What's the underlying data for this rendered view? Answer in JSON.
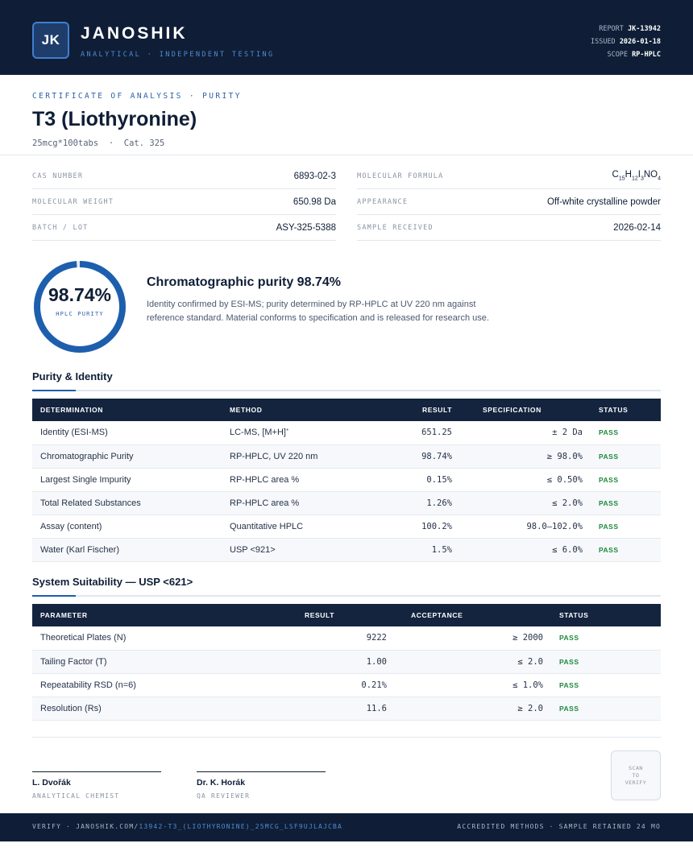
{
  "header": {
    "logo": "JK",
    "brand": "JANOSHIK",
    "brand_sub": "ANALYTICAL · INDEPENDENT TESTING",
    "report_label": "REPORT",
    "report_value": "JK-13942",
    "issued_label": "ISSUED",
    "issued_value": "2026-01-18",
    "scope_label": "SCOPE",
    "scope_value": "RP-HPLC"
  },
  "title": {
    "kicker": "CERTIFICATE OF ANALYSIS · PURITY",
    "name": "T3 (Liothyronine)",
    "sub": "25mcg*100tabs  ·  Cat. 325"
  },
  "properties": [
    {
      "label": "CAS NUMBER",
      "value": "6893-02-3"
    },
    {
      "label": "MOLECULAR FORMULA",
      "value": "C15H12I3NO4"
    },
    {
      "label": "MOLECULAR WEIGHT",
      "value": "650.98 Da"
    },
    {
      "label": "APPEARANCE",
      "value": "Off-white crystalline powder"
    },
    {
      "label": "BATCH / LOT",
      "value": "ASY-325-5388"
    },
    {
      "label": "SAMPLE RECEIVED",
      "value": "2026-02-14"
    }
  ],
  "summary": {
    "purity_percent": 98.74,
    "ring_value": "98.74%",
    "ring_label": "HPLC PURITY",
    "heading": "Chromatographic purity 98.74%",
    "text": "Identity confirmed by ESI-MS; purity determined by RP-HPLC at UV 220 nm against reference standard. Material conforms to specification and is released for research use.",
    "ring_color": "#1d5fad"
  },
  "purity_identity": {
    "heading": "Purity & Identity",
    "columns": [
      "DETERMINATION",
      "METHOD",
      "RESULT",
      "SPECIFICATION",
      "STATUS"
    ],
    "rows": [
      {
        "determination": "Identity (ESI-MS)",
        "method": "LC-MS, [M+H]",
        "method_sup": "+",
        "result": "651.25",
        "spec": "± 2 Da",
        "status": "PASS"
      },
      {
        "determination": "Chromatographic Purity",
        "method": "RP-HPLC, UV 220 nm",
        "method_sup": "",
        "result": "98.74%",
        "spec": "≥ 98.0%",
        "status": "PASS"
      },
      {
        "determination": "Largest Single Impurity",
        "method": "RP-HPLC area %",
        "method_sup": "",
        "result": "0.15%",
        "spec": "≤ 0.50%",
        "status": "PASS"
      },
      {
        "determination": "Total Related Substances",
        "method": "RP-HPLC area %",
        "method_sup": "",
        "result": "1.26%",
        "spec": "≤ 2.0%",
        "status": "PASS"
      },
      {
        "determination": "Assay (content)",
        "method": "Quantitative HPLC",
        "method_sup": "",
        "result": "100.2%",
        "spec": "98.0–102.0%",
        "status": "PASS"
      },
      {
        "determination": "Water (Karl Fischer)",
        "method": "USP <921>",
        "method_sup": "",
        "result": "1.5%",
        "spec": "≤ 6.0%",
        "status": "PASS"
      }
    ]
  },
  "system_suitability": {
    "heading": "System Suitability — USP <621>",
    "columns": [
      "PARAMETER",
      "RESULT",
      "ACCEPTANCE",
      "STATUS"
    ],
    "rows": [
      {
        "parameter": "Theoretical Plates (N)",
        "result": "9222",
        "acceptance": "≥ 2000",
        "status": "PASS"
      },
      {
        "parameter": "Tailing Factor (T)",
        "result": "1.00",
        "acceptance": "≤ 2.0",
        "status": "PASS"
      },
      {
        "parameter": "Repeatability RSD (n=6)",
        "result": "0.21%",
        "acceptance": "≤ 1.0%",
        "status": "PASS"
      },
      {
        "parameter": "Resolution (Rs)",
        "result": "11.6",
        "acceptance": "≥ 2.0",
        "status": "PASS"
      }
    ]
  },
  "signatures": [
    {
      "name": "L. Dvořák",
      "role": "ANALYTICAL CHEMIST"
    },
    {
      "name": "Dr. K. Horák",
      "role": "QA REVIEWER"
    }
  ],
  "qr": {
    "l1": "SCAN",
    "l2": "TO",
    "l3": "VERIFY"
  },
  "footer": {
    "verify_prefix": "VERIFY · JANOSHIK.COM/",
    "verify_path": "13942-T3_(LIOTHYRONINE)_25MCG_LSF9UJLAJCBA",
    "right": "ACCREDITED METHODS · SAMPLE RETAINED 24 MO"
  }
}
